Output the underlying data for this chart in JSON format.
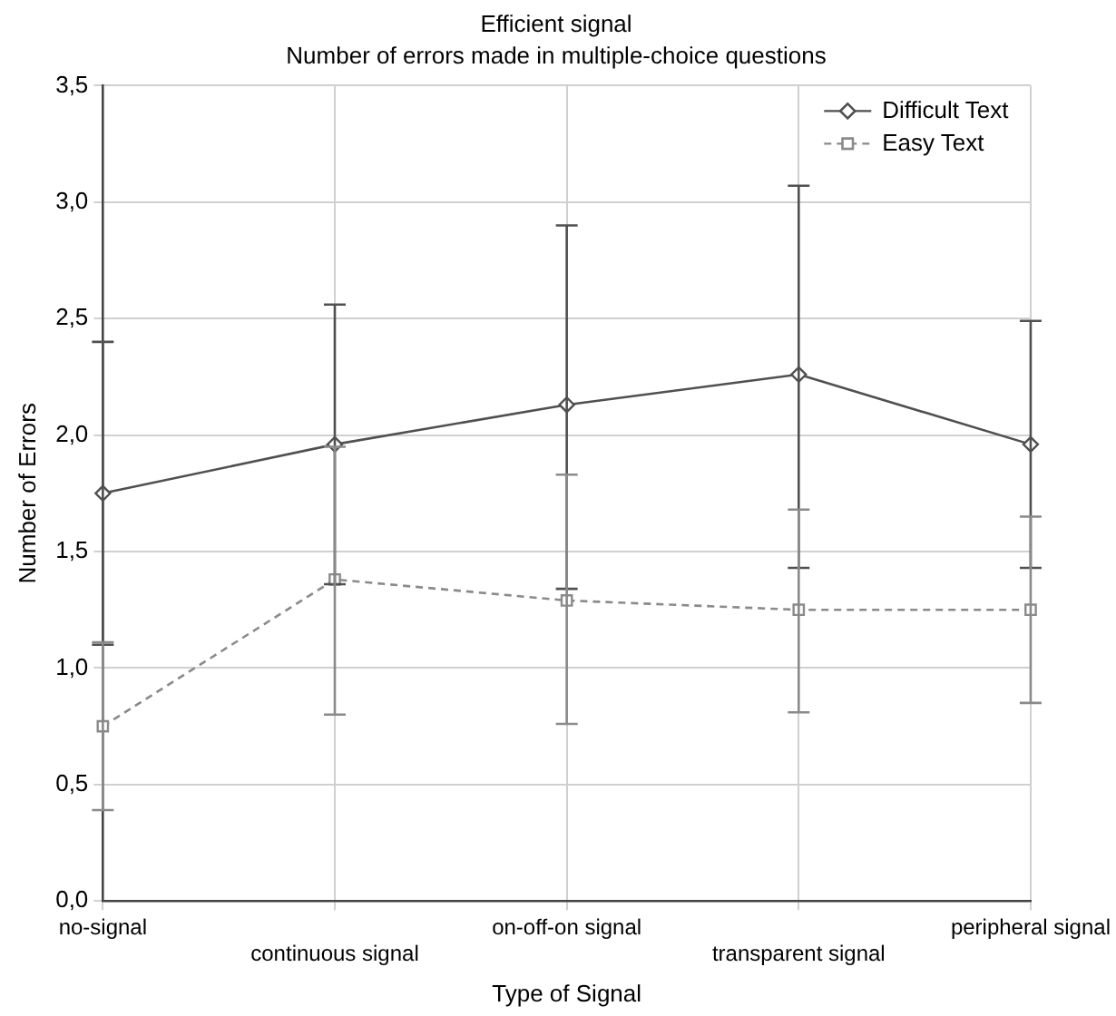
{
  "chart_data": {
    "type": "line",
    "title": "Efficient signal",
    "subtitle": "Number of errors made in multiple-choice questions",
    "xlabel": "Type of Signal",
    "ylabel": "Number of Errors",
    "categories": [
      "no-signal",
      "continuous signal",
      "on-off-on signal",
      "transparent signal",
      "peripheral signal"
    ],
    "series": [
      {
        "name": "Difficult Text",
        "color": "#505050",
        "marker": "diamond",
        "line_style": "solid",
        "values": [
          1.75,
          1.96,
          2.13,
          2.26,
          1.96
        ],
        "errors": [
          [
            1.1,
            2.4
          ],
          [
            1.36,
            2.56
          ],
          [
            1.34,
            2.9
          ],
          [
            1.43,
            3.07
          ],
          [
            1.43,
            2.49
          ]
        ]
      },
      {
        "name": "Easy Text",
        "color": "#8a8a8a",
        "marker": "square",
        "line_style": "dashed",
        "values": [
          0.75,
          1.38,
          1.29,
          1.25,
          1.25
        ],
        "errors": [
          [
            0.39,
            1.11
          ],
          [
            0.8,
            1.95
          ],
          [
            0.76,
            1.83
          ],
          [
            0.81,
            1.68
          ],
          [
            0.85,
            1.65
          ]
        ]
      }
    ],
    "ylim": [
      0,
      3.5
    ],
    "yticks": [
      {
        "value": 0,
        "label": "0,0"
      },
      {
        "value": 0.5,
        "label": "0,5"
      },
      {
        "value": 1,
        "label": "1,0"
      },
      {
        "value": 1.5,
        "label": "1,5"
      },
      {
        "value": 2,
        "label": "2,0"
      },
      {
        "value": 2.5,
        "label": "2,5"
      },
      {
        "value": 3,
        "label": "3,0"
      },
      {
        "value": 3.5,
        "label": "3,5"
      }
    ],
    "grid": true,
    "legend": "top right"
  }
}
